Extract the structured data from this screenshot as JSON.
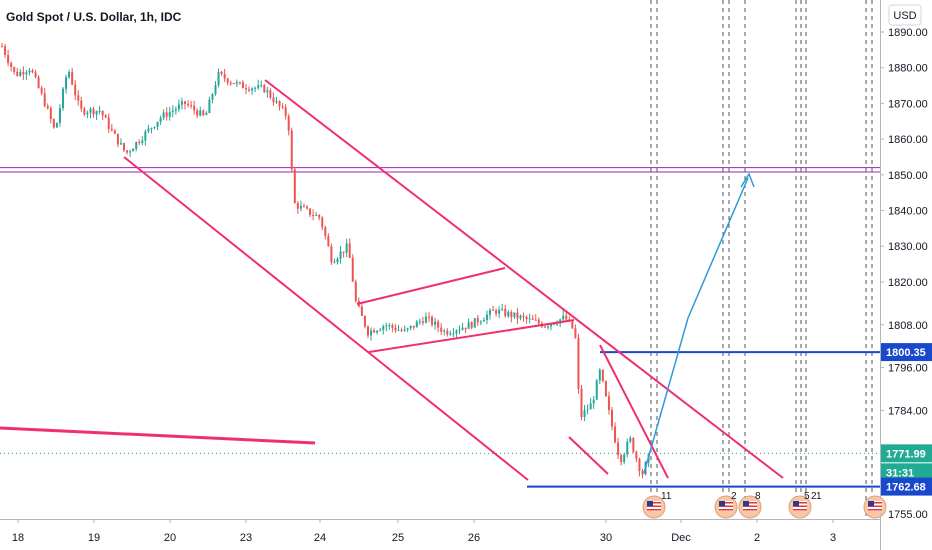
{
  "chart_data": {
    "type": "candlestick",
    "title": "Gold Spot / U.S. Dollar, 1h, IDC",
    "currency": "USD",
    "ylim": [
      1755,
      1895
    ],
    "y_ticks": [
      1755,
      1762.68,
      1771.99,
      1784,
      1796,
      1800.35,
      1808,
      1820,
      1830,
      1840,
      1850,
      1860,
      1870,
      1880,
      1890
    ],
    "y_tick_labels": [
      "1755.00",
      "1784.00",
      "1796.00",
      "1808.00",
      "1820.00",
      "1830.00",
      "1840.00",
      "1850.00",
      "1860.00",
      "1870.00",
      "1880.00",
      "1890.00"
    ],
    "x_tick_labels": [
      "18",
      "19",
      "20",
      "23",
      "24",
      "25",
      "26",
      "30",
      "Dec",
      "2",
      "3"
    ],
    "price_badges": [
      {
        "label": "1800.35",
        "value": 1800.35,
        "color": "#1848cc"
      },
      {
        "label": "1771.99",
        "value": 1771.99,
        "color": "#22ab94"
      },
      {
        "label": "31:31",
        "value": 1768.8,
        "color": "#22ab94"
      },
      {
        "label": "1762.68",
        "value": 1762.68,
        "color": "#1848cc"
      }
    ],
    "horizontal_levels": [
      {
        "value": 1850.8,
        "color": "#9c27b0"
      },
      {
        "value": 1852.0,
        "color": "#9c27b0"
      },
      {
        "value": 1800.35,
        "color": "#1848cc"
      },
      {
        "value": 1762.68,
        "color": "#1848cc"
      }
    ],
    "event_marker_labels": [
      "11",
      "2",
      "8",
      "5",
      "2",
      "1"
    ],
    "grid": false,
    "colors": {
      "up": "#26a69a",
      "down": "#ef5350",
      "trendline": "#f0306e",
      "projection": "#2e9bd6",
      "level_blue": "#1848cc",
      "level_purple": "#9c27b0"
    }
  }
}
